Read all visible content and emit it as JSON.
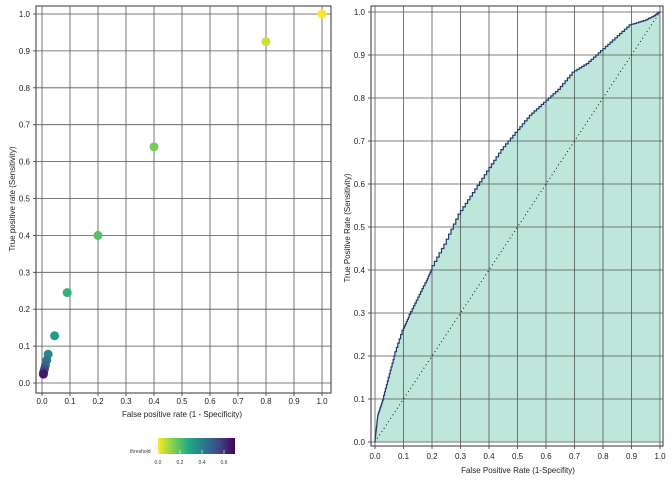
{
  "chart_data": [
    {
      "type": "scatter",
      "xlabel": "False positive rate (1 - Specificity)",
      "ylabel": "True positive rate (Sensitivity)",
      "xlim": [
        0,
        1
      ],
      "ylim": [
        0,
        1
      ],
      "x_ticks": [
        "0.0",
        "0.1",
        "0.2",
        "0.3",
        "0.4",
        "0.5",
        "0.6",
        "0.7",
        "0.8",
        "0.9",
        "1.0"
      ],
      "y_ticks": [
        "0.0",
        "0.1",
        "0.2",
        "0.3",
        "0.4",
        "0.5",
        "0.6",
        "0.7",
        "0.8",
        "0.9",
        "1.0"
      ],
      "grid": true,
      "color_variable": "threshold",
      "points": [
        {
          "x": 1.0,
          "y": 1.0,
          "threshold": 0.0
        },
        {
          "x": 0.8,
          "y": 0.925,
          "threshold": 0.05
        },
        {
          "x": 0.4,
          "y": 0.64,
          "threshold": 0.15
        },
        {
          "x": 0.2,
          "y": 0.4,
          "threshold": 0.2
        },
        {
          "x": 0.09,
          "y": 0.245,
          "threshold": 0.25
        },
        {
          "x": 0.045,
          "y": 0.128,
          "threshold": 0.32
        },
        {
          "x": 0.022,
          "y": 0.078,
          "threshold": 0.38
        },
        {
          "x": 0.017,
          "y": 0.062,
          "threshold": 0.42
        },
        {
          "x": 0.012,
          "y": 0.048,
          "threshold": 0.46
        },
        {
          "x": 0.009,
          "y": 0.038,
          "threshold": 0.52
        },
        {
          "x": 0.006,
          "y": 0.03,
          "threshold": 0.58
        },
        {
          "x": 0.005,
          "y": 0.024,
          "threshold": 0.65
        }
      ],
      "legend": {
        "title": "threshold",
        "placement": "bottom",
        "range": [
          0,
          0.7
        ],
        "ticks": [
          "0.0",
          "0.2",
          "0.4",
          "0.6"
        ],
        "tick_values": [
          0,
          0.2,
          0.4,
          0.6
        ]
      },
      "colors": {
        "point_size_hint": "large",
        "palette": "viridis-reversed"
      }
    },
    {
      "type": "area",
      "xlabel": "False Positive Rate (1-Specifity)",
      "ylabel": "True Positive Rate (Sensitivity)",
      "xlim": [
        0,
        1
      ],
      "ylim": [
        0,
        1
      ],
      "x_ticks": [
        "0.0",
        "0.1",
        "0.2",
        "0.3",
        "0.4",
        "0.5",
        "0.6",
        "0.7",
        "0.8",
        "0.9",
        "1.0"
      ],
      "y_ticks": [
        "0.0",
        "0.1",
        "0.2",
        "0.3",
        "0.4",
        "0.5",
        "0.6",
        "0.7",
        "0.8",
        "0.9",
        "1.0"
      ],
      "grid": true,
      "x": [
        0.0,
        0.005,
        0.01,
        0.02,
        0.03,
        0.05,
        0.07,
        0.1,
        0.12,
        0.15,
        0.18,
        0.2,
        0.25,
        0.3,
        0.35,
        0.4,
        0.45,
        0.5,
        0.55,
        0.6,
        0.65,
        0.7,
        0.75,
        0.8,
        0.85,
        0.9,
        0.95,
        0.98,
        1.0
      ],
      "y": [
        0.0,
        0.03,
        0.06,
        0.08,
        0.1,
        0.15,
        0.2,
        0.26,
        0.29,
        0.33,
        0.37,
        0.4,
        0.46,
        0.53,
        0.58,
        0.63,
        0.68,
        0.72,
        0.76,
        0.79,
        0.82,
        0.86,
        0.88,
        0.91,
        0.94,
        0.97,
        0.98,
        0.99,
        1.0
      ],
      "reference_line": "diagonal dotted",
      "colors": {
        "fill": "#bfe6da",
        "line": "#1f3a6b",
        "grid": "#555555"
      }
    }
  ]
}
